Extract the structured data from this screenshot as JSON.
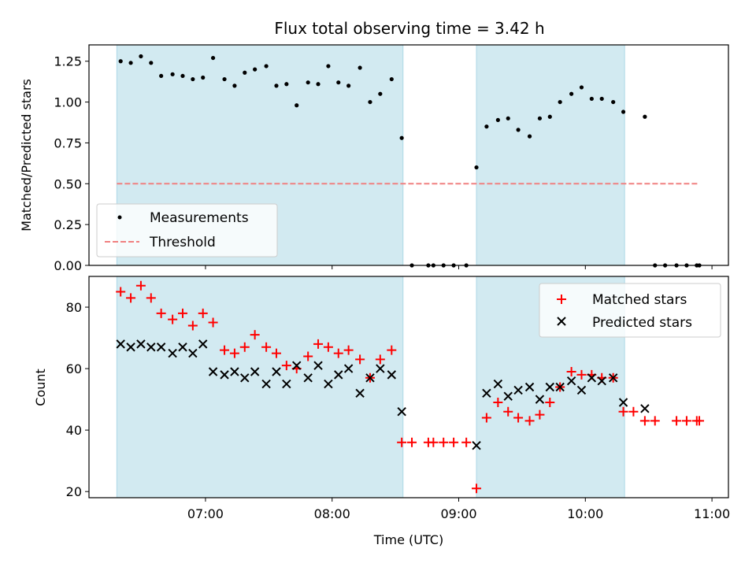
{
  "chart_data": {
    "title": "Flux total observing time = 3.42 h",
    "xlabel": "Time (UTC)",
    "x_ticks": [
      "07:00",
      "08:00",
      "09:00",
      "10:00",
      "11:00"
    ],
    "x_range_hours": [
      6.08,
      11.13
    ],
    "shaded_intervals": [
      [
        6.3,
        8.56
      ],
      [
        9.14,
        10.31
      ]
    ],
    "shade_color": "#add8e6",
    "panels": [
      {
        "type": "scatter",
        "ylabel": "Matched/Predicted stars",
        "ylim": [
          0,
          1.35
        ],
        "y_ticks": [
          "0.00",
          "0.25",
          "0.50",
          "0.75",
          "1.00",
          "1.25"
        ],
        "legend": "lower-left",
        "threshold": {
          "name": "Threshold",
          "value": 0.5,
          "x_range": [
            6.3,
            10.9
          ],
          "color": "#f08080"
        },
        "series": [
          {
            "name": "Measurements",
            "color": "#000000",
            "marker": "dot",
            "x": [
              6.33,
              6.41,
              6.49,
              6.57,
              6.65,
              6.74,
              6.82,
              6.9,
              6.98,
              7.06,
              7.15,
              7.23,
              7.31,
              7.39,
              7.48,
              7.56,
              7.64,
              7.72,
              7.81,
              7.89,
              7.97,
              8.05,
              8.13,
              8.22,
              8.3,
              8.38,
              8.47,
              8.55,
              8.63,
              8.76,
              8.8,
              8.88,
              8.96,
              9.06,
              9.14,
              9.22,
              9.31,
              9.39,
              9.47,
              9.56,
              9.64,
              9.72,
              9.8,
              9.89,
              9.97,
              10.05,
              10.13,
              10.22,
              10.3,
              10.47,
              10.55,
              10.63,
              10.72,
              10.8,
              10.88,
              10.9
            ],
            "y": [
              1.25,
              1.24,
              1.28,
              1.24,
              1.16,
              1.17,
              1.16,
              1.14,
              1.15,
              1.27,
              1.14,
              1.1,
              1.18,
              1.2,
              1.22,
              1.1,
              1.11,
              0.98,
              1.12,
              1.11,
              1.22,
              1.12,
              1.1,
              1.21,
              1.0,
              1.05,
              1.14,
              0.78,
              0.0,
              0.0,
              0.0,
              0.0,
              0.0,
              0.0,
              0.6,
              0.85,
              0.89,
              0.9,
              0.83,
              0.79,
              0.9,
              0.91,
              1.0,
              1.05,
              1.09,
              1.02,
              1.02,
              1.0,
              0.94,
              0.91,
              0.0,
              0.0,
              0.0,
              0.0,
              0.0,
              0.0
            ]
          }
        ]
      },
      {
        "type": "scatter",
        "ylabel": "Count",
        "ylim": [
          18,
          90
        ],
        "y_ticks": [
          "20",
          "40",
          "60",
          "80"
        ],
        "legend": "top-right",
        "series": [
          {
            "name": "Matched stars",
            "color": "#ff0000",
            "marker": "plus",
            "x": [
              6.33,
              6.41,
              6.49,
              6.57,
              6.65,
              6.74,
              6.82,
              6.9,
              6.98,
              7.06,
              7.15,
              7.23,
              7.31,
              7.39,
              7.48,
              7.56,
              7.64,
              7.72,
              7.81,
              7.89,
              7.97,
              8.05,
              8.13,
              8.22,
              8.3,
              8.38,
              8.47,
              8.55,
              8.63,
              8.76,
              8.8,
              8.88,
              8.96,
              9.06,
              9.14,
              9.22,
              9.31,
              9.39,
              9.47,
              9.56,
              9.64,
              9.72,
              9.8,
              9.89,
              9.97,
              10.05,
              10.13,
              10.22,
              10.3,
              10.38,
              10.47,
              10.55,
              10.72,
              10.8,
              10.88,
              10.9
            ],
            "y": [
              85,
              83,
              87,
              83,
              78,
              76,
              78,
              74,
              78,
              75,
              66,
              65,
              67,
              71,
              67,
              65,
              61,
              60,
              64,
              68,
              67,
              65,
              66,
              63,
              57,
              63,
              66,
              36,
              36,
              36,
              36,
              36,
              36,
              36,
              21,
              44,
              49,
              46,
              44,
              43,
              45,
              49,
              54,
              59,
              58,
              58,
              57,
              57,
              46,
              46,
              43,
              43,
              43,
              43,
              43,
              43
            ]
          },
          {
            "name": "Predicted stars",
            "color": "#000000",
            "marker": "x",
            "x": [
              6.33,
              6.41,
              6.49,
              6.57,
              6.65,
              6.74,
              6.82,
              6.9,
              6.98,
              7.06,
              7.15,
              7.23,
              7.31,
              7.39,
              7.48,
              7.56,
              7.64,
              7.72,
              7.81,
              7.89,
              7.97,
              8.05,
              8.13,
              8.22,
              8.3,
              8.38,
              8.47,
              8.55,
              9.14,
              9.22,
              9.31,
              9.39,
              9.47,
              9.56,
              9.64,
              9.72,
              9.8,
              9.89,
              9.97,
              10.05,
              10.13,
              10.22,
              10.3,
              10.47
            ],
            "y": [
              68,
              67,
              68,
              67,
              67,
              65,
              67,
              65,
              68,
              59,
              58,
              59,
              57,
              59,
              55,
              59,
              55,
              61,
              57,
              61,
              55,
              58,
              60,
              52,
              57,
              60,
              58,
              46,
              35,
              52,
              55,
              51,
              53,
              54,
              50,
              54,
              54,
              56,
              53,
              57,
              56,
              57,
              49,
              47
            ]
          }
        ]
      }
    ]
  }
}
